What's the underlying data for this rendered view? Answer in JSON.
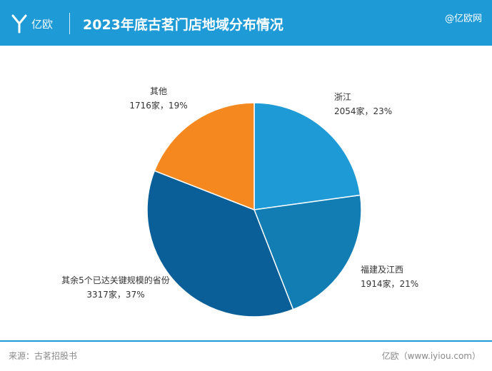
{
  "header": {
    "logo_text": "亿欧",
    "title": "2023年底古茗门店地域分布情况",
    "watermark": "@亿欧网"
  },
  "footer": {
    "source": "来源：古茗招股书",
    "brand": "亿欧（www.iyiou.com）"
  },
  "colors": {
    "header_bg": "#1e9ad6",
    "slice_zhejiang": "#1e9ad6",
    "slice_fujian_jiangxi": "#127db3",
    "slice_five_provinces": "#0a5f98",
    "slice_other": "#f5891f"
  },
  "chart_data": {
    "type": "pie",
    "title": "2023年底古茗门店地域分布情况",
    "start_angle": "12 o'clock, clockwise",
    "slices": [
      {
        "name": "浙江",
        "value": 2054,
        "percent": 23,
        "label": "2054家，23%",
        "color": "#1e9ad6"
      },
      {
        "name": "福建及江西",
        "value": 1914,
        "percent": 21,
        "label": "1914家，21%",
        "color": "#127db3"
      },
      {
        "name": "其余5个已达关键规模的省份",
        "value": 3317,
        "percent": 37,
        "label": "3317家，37%",
        "color": "#0a5f98"
      },
      {
        "name": "其他",
        "value": 1716,
        "percent": 19,
        "label": "1716家，19%",
        "color": "#f5891f"
      }
    ]
  }
}
